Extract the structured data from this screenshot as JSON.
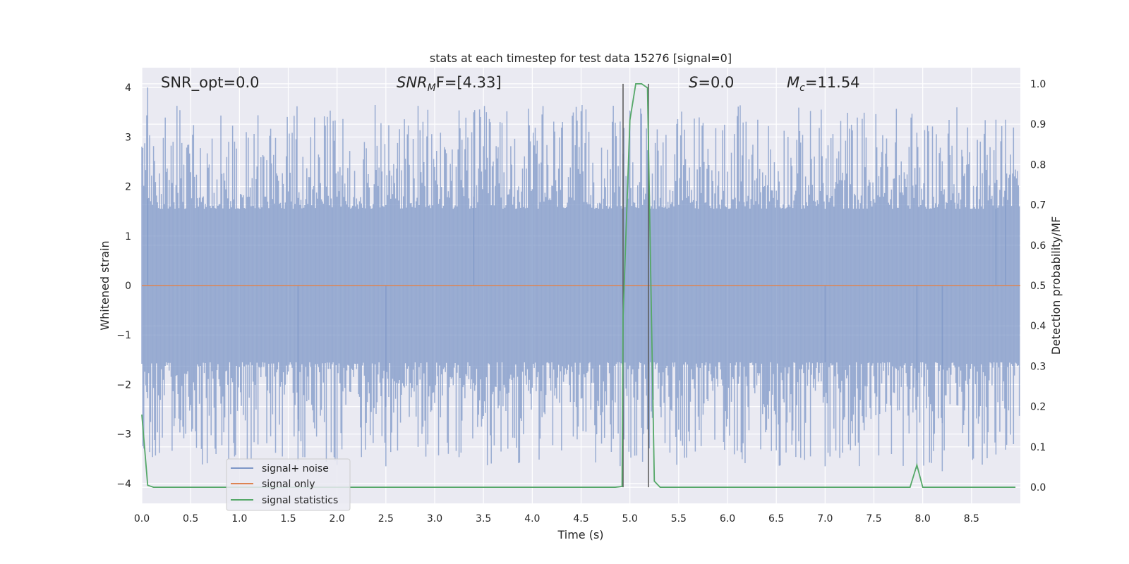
{
  "chart_data": {
    "type": "line",
    "title": "stats at each timestep for test data 15276 [signal=0]",
    "xlabel": "Time (s)",
    "ylabel": "Whitened strain",
    "ylabel_right": "Detection probability/MF",
    "xlim": [
      0.0,
      9.0
    ],
    "ylim": [
      -4.4,
      4.4
    ],
    "ylim_right": [
      -0.04,
      1.04
    ],
    "x_ticks": [
      "0.0",
      "0.5",
      "1.0",
      "1.5",
      "2.0",
      "2.5",
      "3.0",
      "3.5",
      "4.0",
      "4.5",
      "5.0",
      "5.5",
      "6.0",
      "6.5",
      "7.0",
      "7.5",
      "8.0",
      "8.5"
    ],
    "y_ticks": [
      "4",
      "3",
      "2",
      "1",
      "0",
      "−1",
      "−2",
      "−3",
      "−4"
    ],
    "y_ticks_right": [
      "1.0",
      "0.9",
      "0.8",
      "0.7",
      "0.6",
      "0.5",
      "0.4",
      "0.3",
      "0.2",
      "0.1",
      "0.0"
    ],
    "grid": true,
    "legend_position": "lower-left",
    "annotations": {
      "snr_opt": "SNR_opt=0.0",
      "snr_mf_main": "SNR",
      "snr_mf_sub": "M",
      "snr_mf_rest": "F=[4.33]",
      "s_main": "S",
      "s_rest": "=0.0",
      "mc_main": "M",
      "mc_sub": "c",
      "mc_rest": "=11.54"
    },
    "vertical_lines": [
      4.93,
      5.19
    ],
    "series": [
      {
        "name": "signal+ noise",
        "color": "#7e97c7",
        "description": "whitened noise, values within about -4 to 4, dense band",
        "sample_count": 900,
        "envelope_upper": 4.0,
        "envelope_lower": -3.9
      },
      {
        "name": "signal only",
        "color": "#dd8452",
        "x": [
          0.0,
          9.0
        ],
        "y": [
          0.0,
          0.0
        ]
      },
      {
        "name": "signal statistics",
        "color": "#55a868",
        "axis": "right",
        "x": [
          0.0,
          0.06,
          0.12,
          0.5,
          1.0,
          2.0,
          3.0,
          4.0,
          4.5,
          4.85,
          4.92,
          4.93,
          5.0,
          5.06,
          5.12,
          5.18,
          5.25,
          5.31,
          6.0,
          7.0,
          7.87,
          7.94,
          8.0,
          8.5,
          8.95
        ],
        "y": [
          0.18,
          0.005,
          0.0,
          0.0,
          0.0,
          0.0,
          0.0,
          0.0,
          0.0,
          0.0,
          0.002,
          0.42,
          0.91,
          1.0,
          1.0,
          0.99,
          0.015,
          0.0,
          0.0,
          0.0,
          0.0,
          0.055,
          0.0,
          0.0,
          0.0
        ]
      }
    ]
  }
}
